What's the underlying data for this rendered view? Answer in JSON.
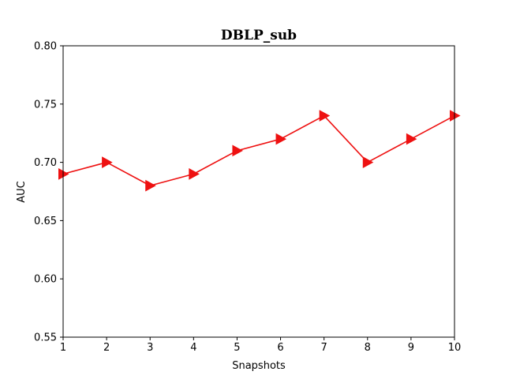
{
  "chart_data": {
    "type": "line",
    "title": "DBLP_sub",
    "xlabel": "Snapshots",
    "ylabel": "AUC",
    "x": [
      1,
      2,
      3,
      4,
      5,
      6,
      7,
      8,
      9,
      10
    ],
    "xlim": [
      1,
      10
    ],
    "ylim": [
      0.55,
      0.8
    ],
    "xticks": [
      "1",
      "2",
      "3",
      "4",
      "5",
      "6",
      "7",
      "8",
      "9",
      "10"
    ],
    "yticks": [
      {
        "value": 0.55,
        "label": "0.55"
      },
      {
        "value": 0.6,
        "label": "0.60"
      },
      {
        "value": 0.65,
        "label": "0.65"
      },
      {
        "value": 0.7,
        "label": "0.70"
      },
      {
        "value": 0.75,
        "label": "0.75"
      },
      {
        "value": 0.8,
        "label": "0.80"
      }
    ],
    "grid": false,
    "series": [
      {
        "values": [
          0.69,
          0.7,
          0.68,
          0.69,
          0.71,
          0.72,
          0.74,
          0.7,
          0.72,
          0.74
        ],
        "color": "#ee1111",
        "marker": "triangle-right"
      }
    ]
  }
}
